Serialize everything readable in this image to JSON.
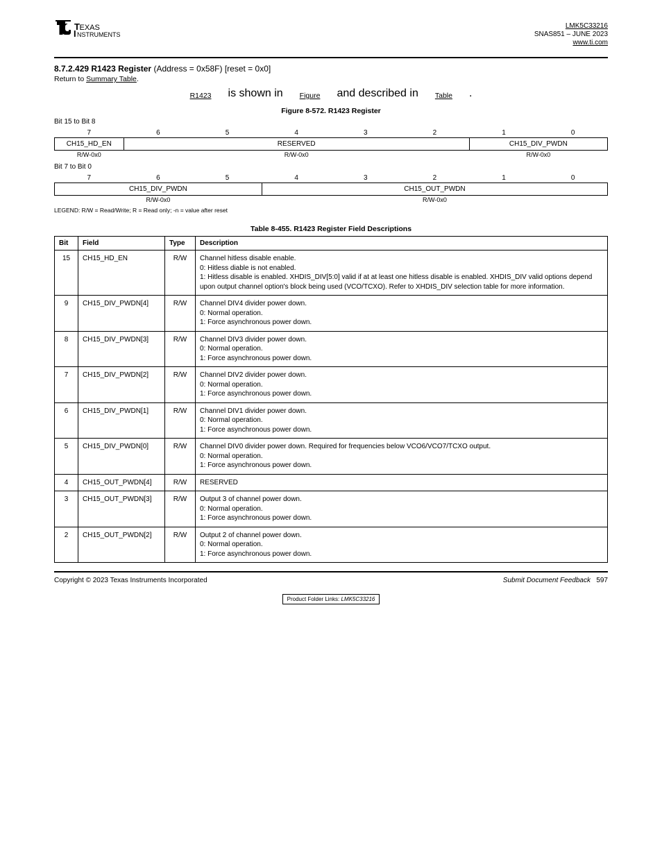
{
  "header": {
    "part": "LMK5C33216",
    "doc": "SNAS851 – JUNE 2023",
    "link_text": "www.ti.com"
  },
  "section": {
    "num": "8.7.2.429",
    "name": "R1423 Register",
    "addr": "(Address = 0x58F) [reset = 0x0]"
  },
  "figure": {
    "caption_a": "Figure 8-572. R1423 Register",
    "caption_b": "Table 8-455. R1423 Register Field Descriptions"
  },
  "bitmap_top": {
    "bits": [
      "7",
      "6",
      "5",
      "4",
      "3",
      "2",
      "1",
      "0"
    ],
    "fields": [
      {
        "name": "CH15_HD_EN",
        "span": 1
      },
      {
        "name": "RESERVED",
        "span": 5
      },
      {
        "name": "CH15_DIV_PWDN",
        "span": 2
      }
    ],
    "access": [
      "R/W-0x0",
      "R/W-0x0",
      "R/W-0x0"
    ]
  },
  "bitmap_bot": {
    "bits": [
      "7",
      "6",
      "5",
      "4",
      "3",
      "2",
      "1",
      "0"
    ],
    "fields": [
      {
        "name": "CH15_DIV_PWDN",
        "span": 3
      },
      {
        "name": "CH15_OUT_PWDN",
        "span": 5
      }
    ],
    "access": [
      "R/W-0x0",
      "R/W-0x0"
    ]
  },
  "legend": "LEGEND: R/W = Read/Write; R = Read only; -n = value after reset",
  "desc_header": [
    "Bit",
    "Field",
    "Type",
    "Description"
  ],
  "rows": [
    {
      "bit": "15",
      "field": "CH15_HD_EN",
      "type": "R/W",
      "lines": [
        "Channel hitless disable enable.",
        "0: Hitless diable is not enabled.",
        "1: Hitless disable is enabled. XHDIS_DIV[5:0] valid if at at least one hitless disable is enabled. XHDIS_DIV valid options depend upon output channel option's block being used (VCO/TCXO). Refer to XHDIS_DIV selection table for more information."
      ]
    },
    {
      "bit": "9",
      "field": "CH15_DIV_PWDN[4]",
      "type": "R/W",
      "lines": [
        "Channel DIV4 divider power down.",
        "0: Normal operation.",
        "1: Force asynchronous power down."
      ]
    },
    {
      "bit": "8",
      "field": "CH15_DIV_PWDN[3]",
      "type": "R/W",
      "lines": [
        "Channel DIV3 divider power down.",
        "0: Normal operation.",
        "1: Force asynchronous power down."
      ]
    },
    {
      "bit": "7",
      "field": "CH15_DIV_PWDN[2]",
      "type": "R/W",
      "lines": [
        "Channel DIV2 divider power down.",
        "0: Normal operation.",
        "1: Force asynchronous power down."
      ]
    },
    {
      "bit": "6",
      "field": "CH15_DIV_PWDN[1]",
      "type": "R/W",
      "lines": [
        "Channel DIV1 divider power down.",
        "0: Normal operation.",
        "1: Force asynchronous power down."
      ]
    },
    {
      "bit": "5",
      "field": "CH15_DIV_PWDN[0]",
      "type": "R/W",
      "lines": [
        "Channel DIV0 divider power down. Required for frequencies below VCO6/VCO7/TCXO output.",
        "0: Normal operation.",
        "1: Force asynchronous power down."
      ]
    },
    {
      "bit": "4",
      "field": "CH15_OUT_PWDN[4]",
      "type": "R/W",
      "lines": [
        "RESERVED"
      ]
    },
    {
      "bit": "3",
      "field": "CH15_OUT_PWDN[3]",
      "type": "R/W",
      "lines": [
        "Output 3 of channel power down.",
        "0: Normal operation.",
        "1: Force asynchronous power down."
      ]
    },
    {
      "bit": "2",
      "field": "CH15_OUT_PWDN[2]",
      "type": "R/W",
      "lines": [
        "Output 2 of channel power down.",
        "0: Normal operation.",
        "1: Force asynchronous power down."
      ]
    }
  ],
  "footer": {
    "copyright": "Copyright © 2023 Texas Instruments Incorporated",
    "right_main": "Submit Document Feedback",
    "page": "597",
    "footnote": "Product Folder Links:",
    "feedback_text": "Submit Document Feedback"
  }
}
